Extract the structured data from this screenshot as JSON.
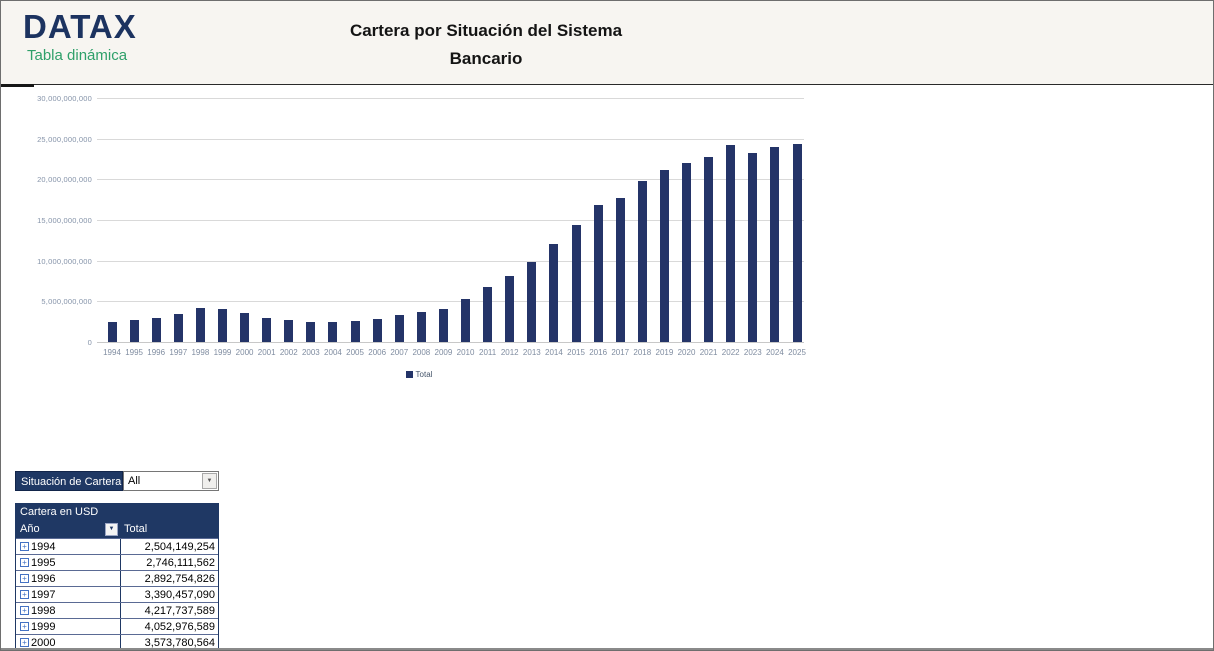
{
  "header": {
    "logo": {
      "brand": "DATAX",
      "subtitle": "Tabla dinámica"
    },
    "title_line1": "Cartera por Situación del Sistema",
    "title_line2": "Bancario"
  },
  "chart_data": {
    "type": "bar",
    "title": "",
    "xlabel": "",
    "ylabel": "",
    "categories": [
      "1994",
      "1995",
      "1996",
      "1997",
      "1998",
      "1999",
      "2000",
      "2001",
      "2002",
      "2003",
      "2004",
      "2005",
      "2006",
      "2007",
      "2008",
      "2009",
      "2010",
      "2011",
      "2012",
      "2013",
      "2014",
      "2015",
      "2016",
      "2017",
      "2018",
      "2019",
      "2020",
      "2021",
      "2022",
      "2023",
      "2024",
      "2025"
    ],
    "values": [
      2504149254,
      2746111562,
      2892754826,
      3390457090,
      4217737589,
      4052976589,
      3573780564,
      3000000000,
      2700000000,
      2500000000,
      2400000000,
      2600000000,
      2850000000,
      3300000000,
      3750000000,
      4100000000,
      5300000000,
      6800000000,
      8100000000,
      9800000000,
      12000000000,
      14400000000,
      16900000000,
      17700000000,
      19800000000,
      21200000000,
      22000000000,
      22700000000,
      24200000000,
      23200000000,
      24000000000,
      24400000000
    ],
    "series_name": "Total",
    "legend_label": "Total",
    "legend_position": "bottom",
    "grid": true,
    "ylim": [
      0,
      30000000000
    ],
    "ytick_step": 5000000000,
    "ytick_labels": [
      "0",
      "5,000,000,000",
      "10,000,000,000",
      "15,000,000,000",
      "20,000,000,000",
      "25,000,000,000",
      "30,000,000,000"
    ],
    "bar_color": "#243468"
  },
  "filter": {
    "label": "Situación de Cartera",
    "value": "All",
    "dropdown_arrow": "▼"
  },
  "pivot": {
    "title": "Cartera en USD",
    "row_header": "Año",
    "value_header": "Total",
    "expand_glyph": "+",
    "filter_arrow": "▼",
    "rows": [
      {
        "year": "1994",
        "total": "2,504,149,254"
      },
      {
        "year": "1995",
        "total": "2,746,111,562"
      },
      {
        "year": "1996",
        "total": "2,892,754,826"
      },
      {
        "year": "1997",
        "total": "3,390,457,090"
      },
      {
        "year": "1998",
        "total": "4,217,737,589"
      },
      {
        "year": "1999",
        "total": "4,052,976,589"
      },
      {
        "year": "2000",
        "total": "3,573,780,564"
      }
    ]
  },
  "colors": {
    "accent_navy": "#1f3864",
    "bar_navy": "#243468",
    "brand_green": "#2fa06a",
    "gridline": "#d9d9d9",
    "axis_text": "#8593a9"
  }
}
